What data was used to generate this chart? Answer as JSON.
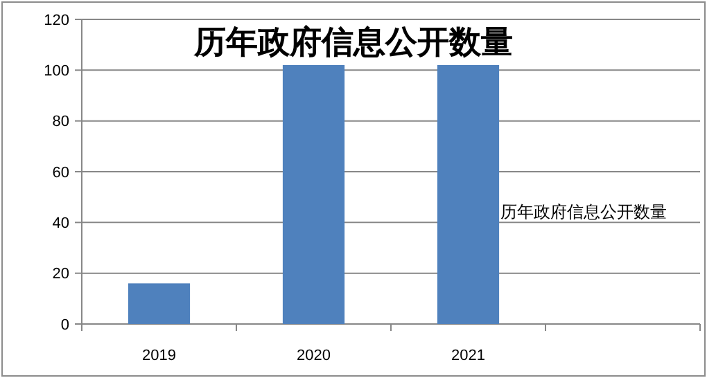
{
  "chart_data": {
    "type": "bar",
    "title": "历年政府信息公开数量",
    "categories": [
      "2019",
      "2020",
      "2021",
      null
    ],
    "series": [
      {
        "name": "历年政府信息公开数量",
        "color": "#4f81bd",
        "values": [
          16,
          102,
          102,
          null
        ]
      }
    ],
    "ylim": [
      0,
      120
    ],
    "yticks": [
      0,
      20,
      40,
      60,
      80,
      100,
      120
    ],
    "grid": "y",
    "legend": "right"
  }
}
